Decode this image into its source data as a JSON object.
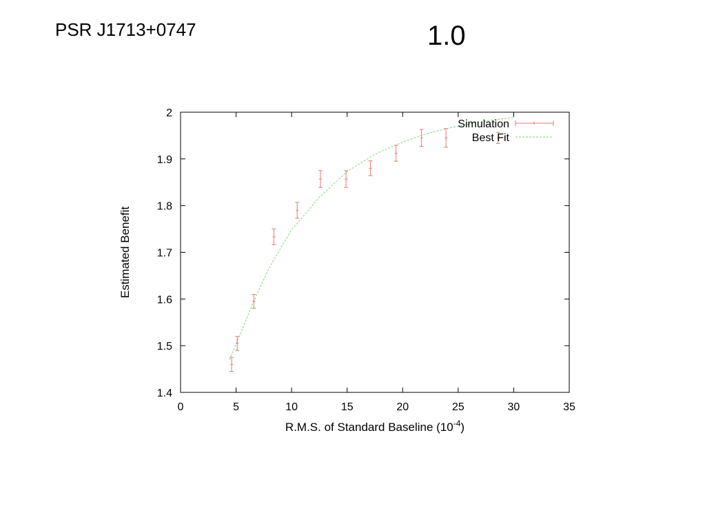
{
  "slide": {
    "title": "PSR J1713+0747",
    "version": "1.0"
  },
  "chart_data": {
    "type": "scatter",
    "xlabel": "R.M.S. of Standard Baseline (10",
    "xlabel_superscript": "-4",
    "xlabel_suffix": ")",
    "ylabel": "Estimated Benefit",
    "xlim": [
      0,
      35
    ],
    "ylim": [
      1.4,
      2.0
    ],
    "x_ticks": [
      "0",
      "5",
      "10",
      "15",
      "20",
      "25",
      "30",
      "35"
    ],
    "y_ticks": [
      "1.4",
      "1.5",
      "1.6",
      "1.7",
      "1.8",
      "1.9",
      "2"
    ],
    "grid": false,
    "legend_position": "top-right",
    "colors": {
      "simulation": "#e8786b",
      "best_fit": "#7fd67f",
      "axes": "#000000"
    },
    "series": [
      {
        "name": "Simulation",
        "style": "points-with-errorbars",
        "points": [
          {
            "x": 4.6,
            "y": 1.46,
            "err": 0.015
          },
          {
            "x": 5.1,
            "y": 1.505,
            "err": 0.015
          },
          {
            "x": 6.6,
            "y": 1.595,
            "err": 0.015
          },
          {
            "x": 8.4,
            "y": 1.733,
            "err": 0.017
          },
          {
            "x": 10.5,
            "y": 1.79,
            "err": 0.017
          },
          {
            "x": 12.6,
            "y": 1.857,
            "err": 0.018
          },
          {
            "x": 14.9,
            "y": 1.857,
            "err": 0.018
          },
          {
            "x": 17.1,
            "y": 1.88,
            "err": 0.016
          },
          {
            "x": 19.4,
            "y": 1.912,
            "err": 0.017
          },
          {
            "x": 21.7,
            "y": 1.945,
            "err": 0.018
          },
          {
            "x": 23.9,
            "y": 1.945,
            "err": 0.02
          },
          {
            "x": 28.6,
            "y": 1.945,
            "err": 0.012
          }
        ]
      },
      {
        "name": "Best Fit",
        "style": "dashed-line",
        "points": [
          {
            "x": 4.4,
            "y": 1.47
          },
          {
            "x": 5.5,
            "y": 1.532
          },
          {
            "x": 6.5,
            "y": 1.59
          },
          {
            "x": 8.0,
            "y": 1.668
          },
          {
            "x": 10.0,
            "y": 1.748
          },
          {
            "x": 12.5,
            "y": 1.818
          },
          {
            "x": 15.0,
            "y": 1.873
          },
          {
            "x": 17.5,
            "y": 1.91
          },
          {
            "x": 20.0,
            "y": 1.936
          },
          {
            "x": 22.0,
            "y": 1.953
          },
          {
            "x": 24.0,
            "y": 1.965
          },
          {
            "x": 26.0,
            "y": 1.975
          },
          {
            "x": 28.0,
            "y": 1.983
          },
          {
            "x": 30.0,
            "y": 1.989
          }
        ]
      }
    ]
  }
}
